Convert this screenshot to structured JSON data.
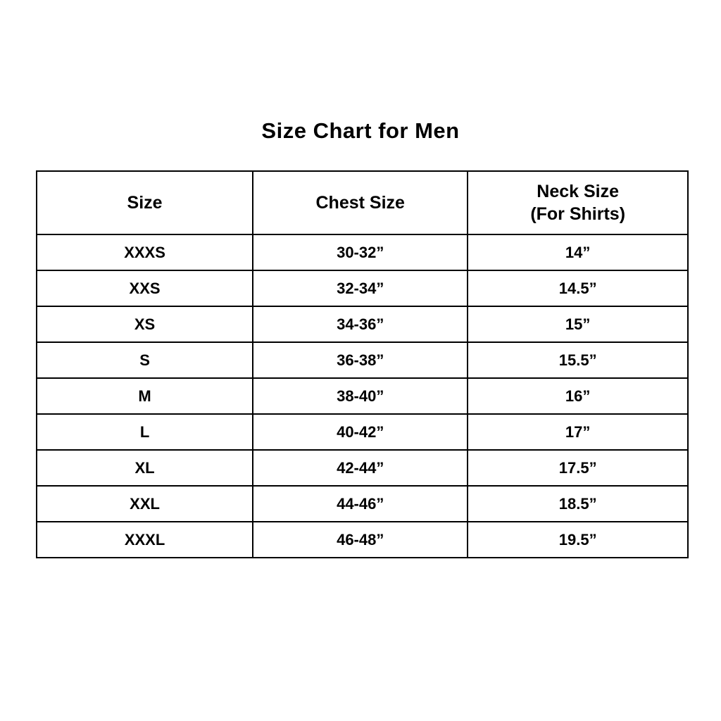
{
  "title": "Size Chart for Men",
  "table": {
    "headers": [
      {
        "line1": "Size",
        "line2": ""
      },
      {
        "line1": "Chest Size",
        "line2": ""
      },
      {
        "line1": "Neck Size",
        "line2": "(For Shirts)"
      }
    ],
    "rows": [
      {
        "size": "XXXS",
        "chest": "30-32”",
        "neck": "14”"
      },
      {
        "size": "XXS",
        "chest": "32-34”",
        "neck": "14.5”"
      },
      {
        "size": "XS",
        "chest": "34-36”",
        "neck": "15”"
      },
      {
        "size": "S",
        "chest": "36-38”",
        "neck": "15.5”"
      },
      {
        "size": "M",
        "chest": "38-40”",
        "neck": "16”"
      },
      {
        "size": "L",
        "chest": "40-42”",
        "neck": "17”"
      },
      {
        "size": "XL",
        "chest": "42-44”",
        "neck": "17.5”"
      },
      {
        "size": "XXL",
        "chest": "44-46”",
        "neck": "18.5”"
      },
      {
        "size": "XXXL",
        "chest": "46-48”",
        "neck": "19.5”"
      }
    ]
  },
  "colors": {
    "background": "#ffffff",
    "text": "#000000",
    "border": "#000000"
  },
  "chart_data": {
    "type": "table",
    "title": "Size Chart for Men",
    "columns": [
      "Size",
      "Chest Size",
      "Neck Size (For Shirts)"
    ],
    "rows": [
      [
        "XXXS",
        "30-32”",
        "14”"
      ],
      [
        "XXS",
        "32-34”",
        "14.5”"
      ],
      [
        "XS",
        "34-36”",
        "15”"
      ],
      [
        "S",
        "36-38”",
        "15.5”"
      ],
      [
        "M",
        "38-40”",
        "16”"
      ],
      [
        "L",
        "40-42”",
        "17”"
      ],
      [
        "XL",
        "42-44”",
        "17.5”"
      ],
      [
        "XXL",
        "44-46”",
        "18.5”"
      ],
      [
        "XXXL",
        "46-48”",
        "19.5”"
      ]
    ],
    "legend_position": "none",
    "grid": true
  }
}
